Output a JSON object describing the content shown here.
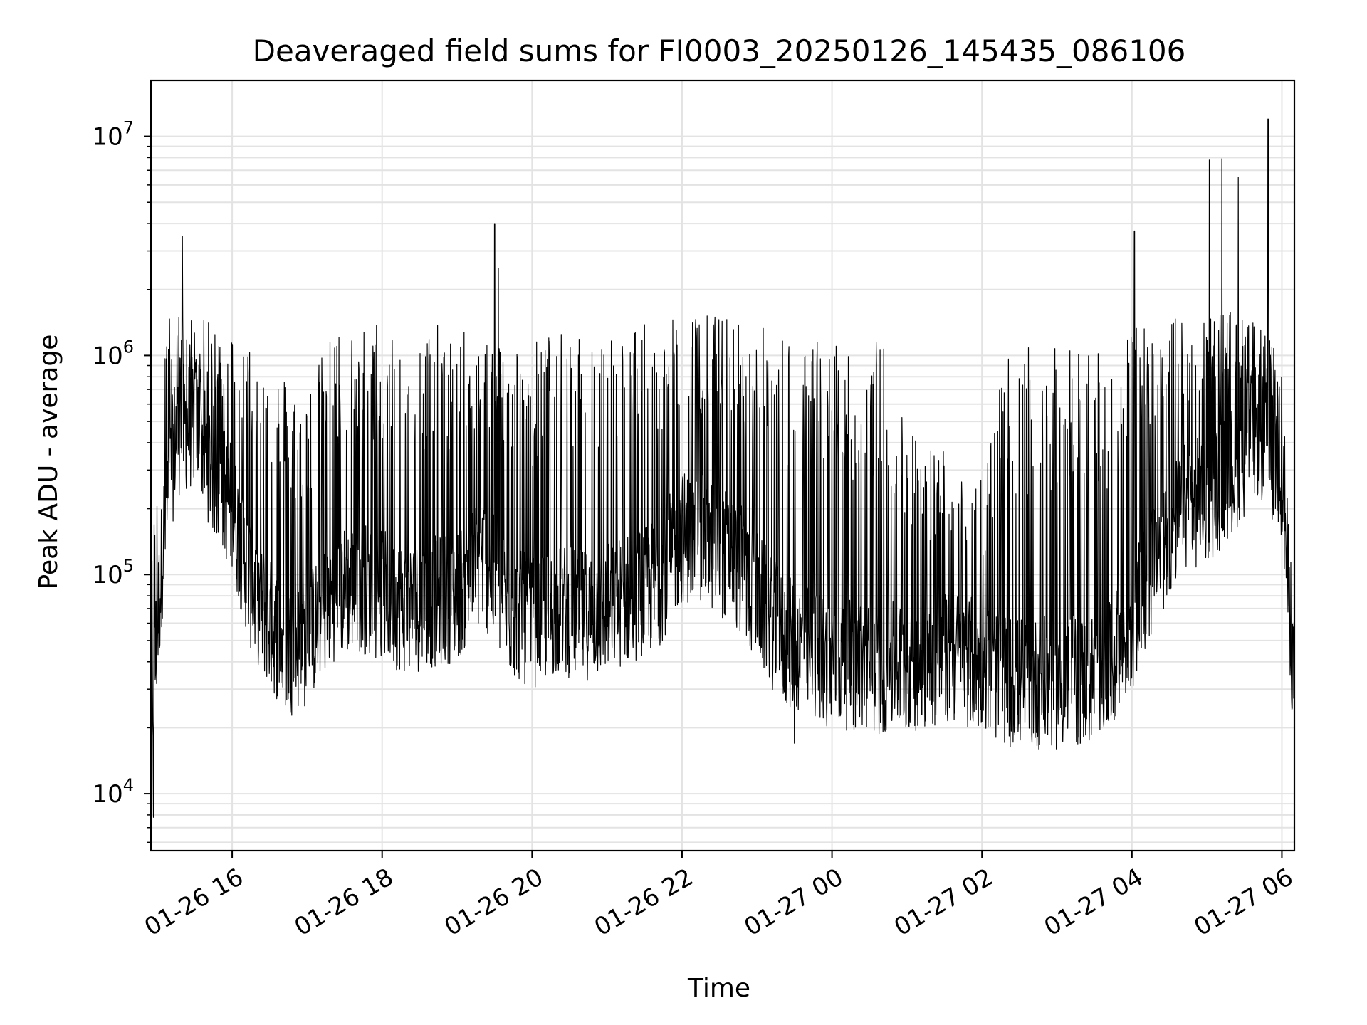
{
  "chart_data": {
    "type": "line",
    "title": "Deaveraged field sums for FI0003_20250126_145435_086106",
    "xlabel": "Time",
    "ylabel": "Peak ADU - average",
    "yscale": "log",
    "xlim": [
      "2025-01-26 14:55",
      "2025-01-27 06:10"
    ],
    "ylim": [
      5500,
      18000000
    ],
    "grid": true,
    "line_color": "#000000",
    "x_ticks": [
      "01-26 16",
      "01-26 18",
      "01-26 20",
      "01-26 22",
      "01-27 00",
      "01-27 02",
      "01-27 04",
      "01-27 06"
    ],
    "x_tick_times": [
      "2025-01-26 16:00",
      "2025-01-26 18:00",
      "2025-01-26 20:00",
      "2025-01-26 22:00",
      "2025-01-27 00:00",
      "2025-01-27 02:00",
      "2025-01-27 04:00",
      "2025-01-27 06:00"
    ],
    "y_ticks": [
      {
        "base": "10",
        "exp": "4",
        "value": 10000
      },
      {
        "base": "10",
        "exp": "5",
        "value": 100000
      },
      {
        "base": "10",
        "exp": "6",
        "value": 1000000
      },
      {
        "base": "10",
        "exp": "7",
        "value": 10000000
      }
    ],
    "series": [
      {
        "x": [
          "2025-01-26 14:55",
          "2025-01-26 15:05",
          "2025-01-26 15:15",
          "2025-01-26 15:30",
          "2025-01-26 15:45",
          "2025-01-26 16:00",
          "2025-01-26 16:15",
          "2025-01-26 16:30",
          "2025-01-26 16:45",
          "2025-01-26 17:00",
          "2025-01-26 17:20",
          "2025-01-26 17:40",
          "2025-01-26 18:00",
          "2025-01-26 18:20",
          "2025-01-26 18:40",
          "2025-01-26 19:00",
          "2025-01-26 19:20",
          "2025-01-26 19:40",
          "2025-01-26 20:00",
          "2025-01-26 20:20",
          "2025-01-26 20:40",
          "2025-01-26 21:00",
          "2025-01-26 21:20",
          "2025-01-26 21:40",
          "2025-01-26 22:00",
          "2025-01-26 22:20",
          "2025-01-26 22:40",
          "2025-01-26 23:00",
          "2025-01-26 23:20",
          "2025-01-26 23:40",
          "2025-01-27 00:00",
          "2025-01-27 00:20",
          "2025-01-27 00:40",
          "2025-01-27 01:00",
          "2025-01-27 01:20",
          "2025-01-27 01:40",
          "2025-01-27 02:00",
          "2025-01-27 02:20",
          "2025-01-27 02:40",
          "2025-01-27 03:00",
          "2025-01-27 03:20",
          "2025-01-27 03:40",
          "2025-01-27 04:00",
          "2025-01-27 04:20",
          "2025-01-27 04:40",
          "2025-01-27 05:00",
          "2025-01-27 05:20",
          "2025-01-27 05:40",
          "2025-01-27 06:00",
          "2025-01-27 06:10"
        ],
        "baseline": [
          20000,
          150000,
          450000,
          500000,
          300000,
          200000,
          90000,
          60000,
          45000,
          50000,
          80000,
          90000,
          80000,
          70000,
          75000,
          80000,
          120000,
          70000,
          60000,
          70000,
          65000,
          70000,
          80000,
          90000,
          150000,
          140000,
          120000,
          80000,
          50000,
          45000,
          40000,
          38000,
          37000,
          38000,
          40000,
          42000,
          38000,
          33000,
          32000,
          32000,
          33000,
          35000,
          60000,
          120000,
          200000,
          220000,
          300000,
          450000,
          300000,
          30000
        ],
        "peaks": [
          100000,
          1500000,
          1600000,
          1500000,
          1400000,
          1300000,
          1200000,
          1000000,
          800000,
          700000,
          1300000,
          1400000,
          1500000,
          1400000,
          1400000,
          1300000,
          1300000,
          1200000,
          1200000,
          1300000,
          1200000,
          1300000,
          1400000,
          1400000,
          1500000,
          1600000,
          1500000,
          1400000,
          1300000,
          1200000,
          1200000,
          1200000,
          1200000,
          500000,
          400000,
          400000,
          300000,
          1000000,
          1100000,
          1100000,
          1100000,
          1200000,
          1300000,
          1500000,
          1500000,
          1600000,
          1600000,
          1400000,
          1000000,
          50000
        ],
        "notable_spikes": [
          {
            "x": "2025-01-26 15:20",
            "y": 3500000
          },
          {
            "x": "2025-01-26 19:30",
            "y": 4000000
          },
          {
            "x": "2025-01-26 19:33",
            "y": 2500000
          },
          {
            "x": "2025-01-27 04:02",
            "y": 3700000
          },
          {
            "x": "2025-01-27 05:02",
            "y": 7800000
          },
          {
            "x": "2025-01-27 05:12",
            "y": 7900000
          },
          {
            "x": "2025-01-27 05:25",
            "y": 6500000
          },
          {
            "x": "2025-01-27 05:49",
            "y": 12000000
          },
          {
            "x": "2025-01-26 23:30",
            "y": 17000
          },
          {
            "x": "2025-01-26 14:57",
            "y": 7800
          }
        ]
      }
    ]
  }
}
